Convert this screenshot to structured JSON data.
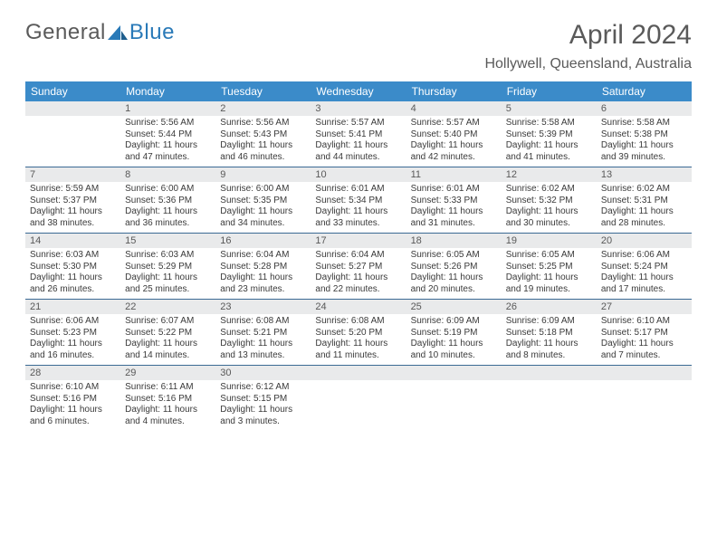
{
  "brand": {
    "part1": "General",
    "part2": "Blue"
  },
  "title": "April 2024",
  "location": "Hollywell, Queensland, Australia",
  "colors": {
    "header_bg": "#3b8bc9",
    "header_text": "#ffffff",
    "daynum_bg": "#e9eaeb",
    "daynum_text": "#595959",
    "rule": "#3b6a94",
    "body_text": "#3a3a3a",
    "title_text": "#5a5a5a",
    "logo_blue": "#2a7ab8"
  },
  "day_names": [
    "Sunday",
    "Monday",
    "Tuesday",
    "Wednesday",
    "Thursday",
    "Friday",
    "Saturday"
  ],
  "weeks": [
    [
      {
        "day": "",
        "sunrise": "",
        "sunset": "",
        "daylight": ""
      },
      {
        "day": "1",
        "sunrise": "Sunrise: 5:56 AM",
        "sunset": "Sunset: 5:44 PM",
        "daylight": "Daylight: 11 hours and 47 minutes."
      },
      {
        "day": "2",
        "sunrise": "Sunrise: 5:56 AM",
        "sunset": "Sunset: 5:43 PM",
        "daylight": "Daylight: 11 hours and 46 minutes."
      },
      {
        "day": "3",
        "sunrise": "Sunrise: 5:57 AM",
        "sunset": "Sunset: 5:41 PM",
        "daylight": "Daylight: 11 hours and 44 minutes."
      },
      {
        "day": "4",
        "sunrise": "Sunrise: 5:57 AM",
        "sunset": "Sunset: 5:40 PM",
        "daylight": "Daylight: 11 hours and 42 minutes."
      },
      {
        "day": "5",
        "sunrise": "Sunrise: 5:58 AM",
        "sunset": "Sunset: 5:39 PM",
        "daylight": "Daylight: 11 hours and 41 minutes."
      },
      {
        "day": "6",
        "sunrise": "Sunrise: 5:58 AM",
        "sunset": "Sunset: 5:38 PM",
        "daylight": "Daylight: 11 hours and 39 minutes."
      }
    ],
    [
      {
        "day": "7",
        "sunrise": "Sunrise: 5:59 AM",
        "sunset": "Sunset: 5:37 PM",
        "daylight": "Daylight: 11 hours and 38 minutes."
      },
      {
        "day": "8",
        "sunrise": "Sunrise: 6:00 AM",
        "sunset": "Sunset: 5:36 PM",
        "daylight": "Daylight: 11 hours and 36 minutes."
      },
      {
        "day": "9",
        "sunrise": "Sunrise: 6:00 AM",
        "sunset": "Sunset: 5:35 PM",
        "daylight": "Daylight: 11 hours and 34 minutes."
      },
      {
        "day": "10",
        "sunrise": "Sunrise: 6:01 AM",
        "sunset": "Sunset: 5:34 PM",
        "daylight": "Daylight: 11 hours and 33 minutes."
      },
      {
        "day": "11",
        "sunrise": "Sunrise: 6:01 AM",
        "sunset": "Sunset: 5:33 PM",
        "daylight": "Daylight: 11 hours and 31 minutes."
      },
      {
        "day": "12",
        "sunrise": "Sunrise: 6:02 AM",
        "sunset": "Sunset: 5:32 PM",
        "daylight": "Daylight: 11 hours and 30 minutes."
      },
      {
        "day": "13",
        "sunrise": "Sunrise: 6:02 AM",
        "sunset": "Sunset: 5:31 PM",
        "daylight": "Daylight: 11 hours and 28 minutes."
      }
    ],
    [
      {
        "day": "14",
        "sunrise": "Sunrise: 6:03 AM",
        "sunset": "Sunset: 5:30 PM",
        "daylight": "Daylight: 11 hours and 26 minutes."
      },
      {
        "day": "15",
        "sunrise": "Sunrise: 6:03 AM",
        "sunset": "Sunset: 5:29 PM",
        "daylight": "Daylight: 11 hours and 25 minutes."
      },
      {
        "day": "16",
        "sunrise": "Sunrise: 6:04 AM",
        "sunset": "Sunset: 5:28 PM",
        "daylight": "Daylight: 11 hours and 23 minutes."
      },
      {
        "day": "17",
        "sunrise": "Sunrise: 6:04 AM",
        "sunset": "Sunset: 5:27 PM",
        "daylight": "Daylight: 11 hours and 22 minutes."
      },
      {
        "day": "18",
        "sunrise": "Sunrise: 6:05 AM",
        "sunset": "Sunset: 5:26 PM",
        "daylight": "Daylight: 11 hours and 20 minutes."
      },
      {
        "day": "19",
        "sunrise": "Sunrise: 6:05 AM",
        "sunset": "Sunset: 5:25 PM",
        "daylight": "Daylight: 11 hours and 19 minutes."
      },
      {
        "day": "20",
        "sunrise": "Sunrise: 6:06 AM",
        "sunset": "Sunset: 5:24 PM",
        "daylight": "Daylight: 11 hours and 17 minutes."
      }
    ],
    [
      {
        "day": "21",
        "sunrise": "Sunrise: 6:06 AM",
        "sunset": "Sunset: 5:23 PM",
        "daylight": "Daylight: 11 hours and 16 minutes."
      },
      {
        "day": "22",
        "sunrise": "Sunrise: 6:07 AM",
        "sunset": "Sunset: 5:22 PM",
        "daylight": "Daylight: 11 hours and 14 minutes."
      },
      {
        "day": "23",
        "sunrise": "Sunrise: 6:08 AM",
        "sunset": "Sunset: 5:21 PM",
        "daylight": "Daylight: 11 hours and 13 minutes."
      },
      {
        "day": "24",
        "sunrise": "Sunrise: 6:08 AM",
        "sunset": "Sunset: 5:20 PM",
        "daylight": "Daylight: 11 hours and 11 minutes."
      },
      {
        "day": "25",
        "sunrise": "Sunrise: 6:09 AM",
        "sunset": "Sunset: 5:19 PM",
        "daylight": "Daylight: 11 hours and 10 minutes."
      },
      {
        "day": "26",
        "sunrise": "Sunrise: 6:09 AM",
        "sunset": "Sunset: 5:18 PM",
        "daylight": "Daylight: 11 hours and 8 minutes."
      },
      {
        "day": "27",
        "sunrise": "Sunrise: 6:10 AM",
        "sunset": "Sunset: 5:17 PM",
        "daylight": "Daylight: 11 hours and 7 minutes."
      }
    ],
    [
      {
        "day": "28",
        "sunrise": "Sunrise: 6:10 AM",
        "sunset": "Sunset: 5:16 PM",
        "daylight": "Daylight: 11 hours and 6 minutes."
      },
      {
        "day": "29",
        "sunrise": "Sunrise: 6:11 AM",
        "sunset": "Sunset: 5:16 PM",
        "daylight": "Daylight: 11 hours and 4 minutes."
      },
      {
        "day": "30",
        "sunrise": "Sunrise: 6:12 AM",
        "sunset": "Sunset: 5:15 PM",
        "daylight": "Daylight: 11 hours and 3 minutes."
      },
      {
        "day": "",
        "sunrise": "",
        "sunset": "",
        "daylight": ""
      },
      {
        "day": "",
        "sunrise": "",
        "sunset": "",
        "daylight": ""
      },
      {
        "day": "",
        "sunrise": "",
        "sunset": "",
        "daylight": ""
      },
      {
        "day": "",
        "sunrise": "",
        "sunset": "",
        "daylight": ""
      }
    ]
  ]
}
